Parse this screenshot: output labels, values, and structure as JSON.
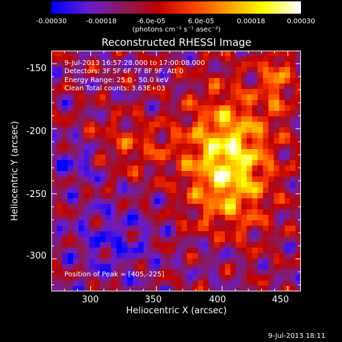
{
  "chart_data": {
    "type": "heatmap",
    "title": "Reconstructed RHESSI Image",
    "xlabel": "Heliocentric X (arcsec)",
    "ylabel": "Heliocentric Y (arcsec)",
    "xlim": [
      270,
      460
    ],
    "ylim": [
      -325,
      -140
    ],
    "xticks": [
      "300",
      "350",
      "400",
      "450"
    ],
    "xtick_values": [
      300,
      350,
      400,
      450
    ],
    "yticks": [
      "-150",
      "-200",
      "-250",
      "-300"
    ],
    "ytick_values": [
      -150,
      -200,
      -250,
      -300
    ],
    "colorbar": {
      "range": [
        -0.0003,
        0.0003
      ],
      "tick_labels": [
        "-0.00030",
        "-0.00018",
        "-6.0e-05",
        "6.0e-05",
        "0.00018",
        "0.00030"
      ],
      "tick_values": [
        -0.0003,
        -0.00018,
        -6e-05,
        6e-05,
        0.00018,
        0.0003
      ],
      "units": "(photons cm⁻² s⁻¹ asec⁻²)",
      "colors": [
        "#0000ff",
        "#6a1bd0",
        "#8a1a5a",
        "#c00000",
        "#ff4000",
        "#ffa000",
        "#ffff00",
        "#ffffff"
      ]
    },
    "annotations": [
      "9-Jul-2013 16:57:28.000 to 17:00:08.000",
      "Detectors: 3F 5F 6F 7F 8F 9F, Att 0",
      "Energy Range: 25.0 - 50.0 keV",
      "Clean     Total counts: 3.63E+03"
    ],
    "peak_label": "Position of Peak = [405,-225]",
    "peak": [
      405,
      -225
    ]
  },
  "timestamp": "9-Jul-2013 18:11"
}
